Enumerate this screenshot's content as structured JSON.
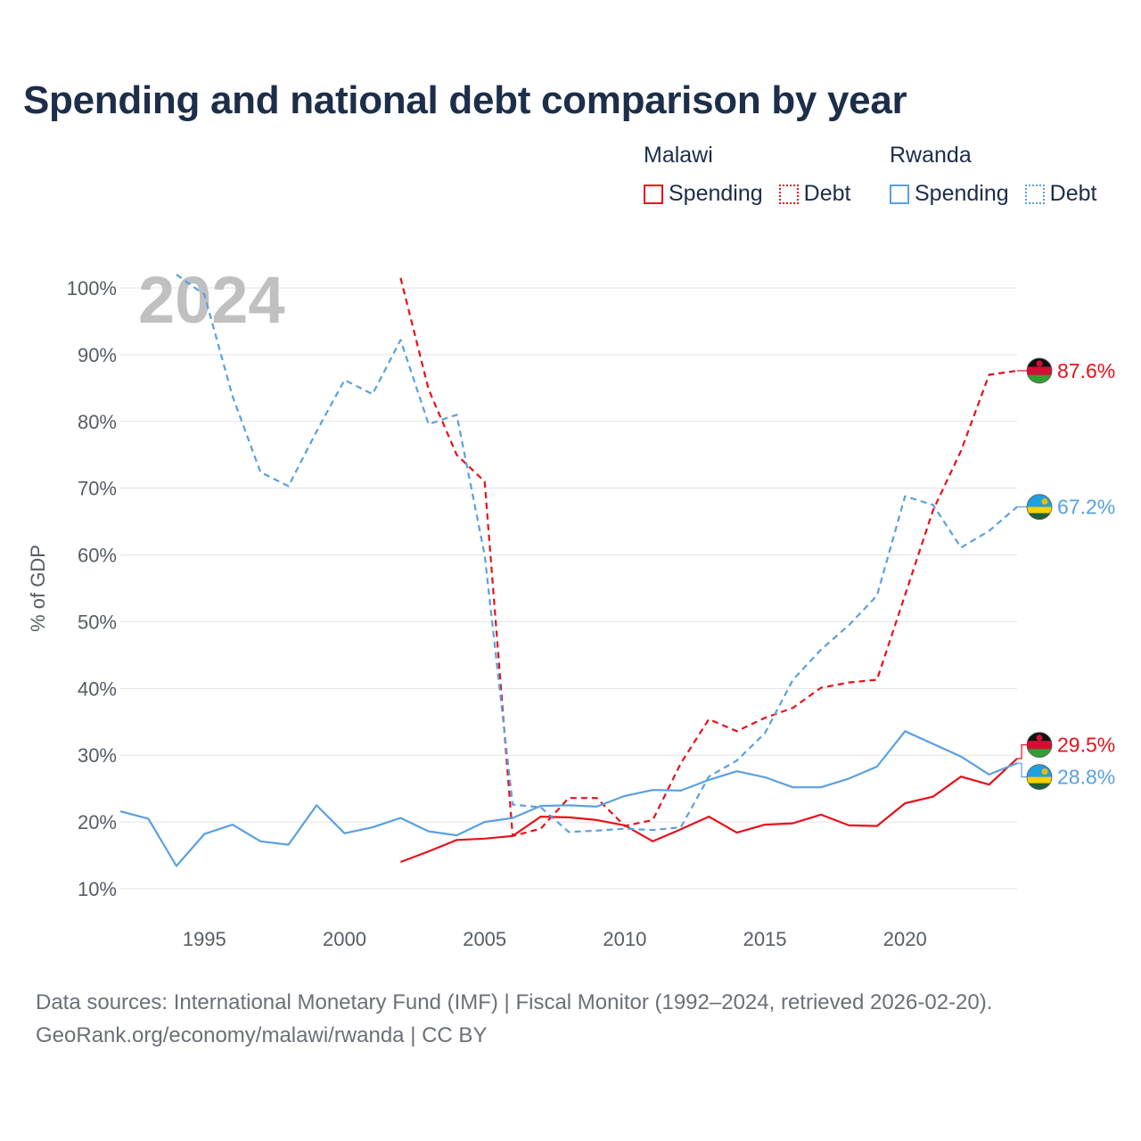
{
  "chart_data": {
    "type": "line",
    "title": "Spending and national debt comparison by year",
    "year_watermark": "2024",
    "ylabel": "% of GDP",
    "xlabel": "",
    "xlim": [
      1992,
      2024
    ],
    "ylim": [
      10,
      100
    ],
    "x_ticks": [
      1995,
      2000,
      2005,
      2010,
      2015,
      2020
    ],
    "y_ticks": [
      10,
      20,
      30,
      40,
      50,
      60,
      70,
      80,
      90,
      100
    ],
    "y_tick_suffix": "%",
    "legend": {
      "groups": [
        {
          "country": "Malawi",
          "items": [
            "Spending",
            "Debt"
          ]
        },
        {
          "country": "Rwanda",
          "items": [
            "Spending",
            "Debt"
          ]
        }
      ]
    },
    "series": [
      {
        "name": "Malawi Spending",
        "country": "Malawi",
        "kind": "Spending",
        "color": "#e8101a",
        "dashed": false,
        "x": [
          2002,
          2003,
          2004,
          2005,
          2006,
          2007,
          2008,
          2009,
          2010,
          2011,
          2012,
          2013,
          2014,
          2015,
          2016,
          2017,
          2018,
          2019,
          2020,
          2021,
          2022,
          2023,
          2024
        ],
        "values": [
          14.0,
          15.6,
          17.3,
          17.5,
          17.9,
          20.8,
          20.7,
          20.3,
          19.5,
          17.1,
          18.9,
          20.8,
          18.4,
          19.6,
          19.8,
          21.1,
          19.5,
          19.4,
          22.8,
          23.8,
          26.8,
          25.6,
          29.5
        ],
        "end_label": "29.5%"
      },
      {
        "name": "Malawi Debt",
        "country": "Malawi",
        "kind": "Debt",
        "color": "#e8101a",
        "dashed": true,
        "x": [
          2002,
          2003,
          2004,
          2005,
          2006,
          2007,
          2008,
          2009,
          2010,
          2011,
          2012,
          2013,
          2014,
          2015,
          2016,
          2017,
          2018,
          2019,
          2020,
          2021,
          2022,
          2023,
          2024
        ],
        "values": [
          101.5,
          84.8,
          75.0,
          71.0,
          17.9,
          19.0,
          23.6,
          23.6,
          19.4,
          20.3,
          28.8,
          35.4,
          33.6,
          35.6,
          37.1,
          40.1,
          40.9,
          41.3,
          54.0,
          66.7,
          75.6,
          87.0,
          87.6
        ],
        "end_label": "87.6%"
      },
      {
        "name": "Rwanda Spending",
        "country": "Rwanda",
        "kind": "Spending",
        "color": "#5aa0e0",
        "dashed": false,
        "x": [
          1992,
          1993,
          1994,
          1995,
          1996,
          1997,
          1998,
          1999,
          2000,
          2001,
          2002,
          2003,
          2004,
          2005,
          2006,
          2007,
          2008,
          2009,
          2010,
          2011,
          2012,
          2013,
          2014,
          2015,
          2016,
          2017,
          2018,
          2019,
          2020,
          2021,
          2022,
          2023,
          2024
        ],
        "values": [
          21.6,
          20.5,
          13.4,
          18.2,
          19.6,
          17.1,
          16.6,
          22.5,
          18.3,
          19.2,
          20.6,
          18.6,
          18.0,
          20.0,
          20.6,
          22.4,
          22.5,
          22.3,
          23.9,
          24.8,
          24.7,
          26.3,
          27.6,
          26.7,
          25.2,
          25.2,
          26.5,
          28.3,
          33.6,
          31.7,
          29.8,
          27.1,
          28.8
        ],
        "end_label": "28.8%"
      },
      {
        "name": "Rwanda Debt",
        "country": "Rwanda",
        "kind": "Debt",
        "color": "#5aa0e0",
        "dashed": true,
        "x": [
          1994,
          1995,
          1996,
          1997,
          1998,
          1999,
          2000,
          2001,
          2002,
          2003,
          2004,
          2005,
          2006,
          2007,
          2008,
          2009,
          2010,
          2011,
          2012,
          2013,
          2014,
          2015,
          2016,
          2017,
          2018,
          2019,
          2020,
          2021,
          2022,
          2023,
          2024
        ],
        "values": [
          102.0,
          99.0,
          83.8,
          72.4,
          70.3,
          78.5,
          86.2,
          84.1,
          92.2,
          79.6,
          81.0,
          60.0,
          22.6,
          22.2,
          18.5,
          18.7,
          19.0,
          18.8,
          19.2,
          26.8,
          29.2,
          33.3,
          41.3,
          45.8,
          49.5,
          53.9,
          68.8,
          67.5,
          61.1,
          63.6,
          67.2
        ],
        "end_label": "67.2%"
      }
    ]
  },
  "footer": {
    "line1": "Data sources: International Monetary Fund (IMF) | Fiscal Monitor (1992–2024, retrieved 2026-02-20).",
    "line2": "GeoRank.org/economy/malawi/rwanda | CC BY"
  }
}
